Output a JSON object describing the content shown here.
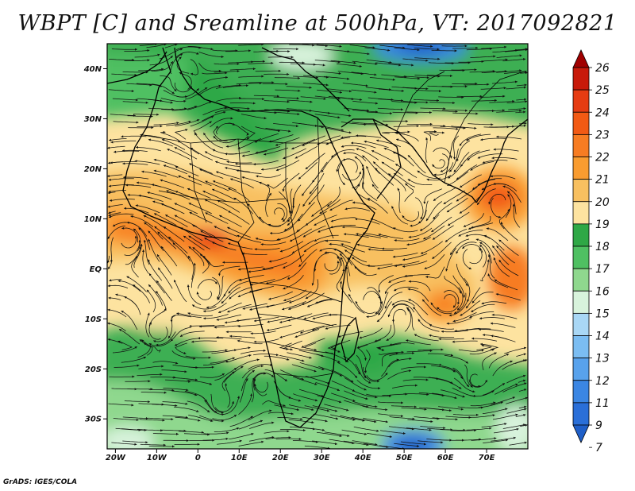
{
  "title": "WBPT [C] and Sreamline at 500hPa, VT: 2017092821",
  "credit": "GrADS: IGES/COLA",
  "map": {
    "lon_ticks": [
      "20W",
      "10W",
      "0",
      "10E",
      "20E",
      "30E",
      "40E",
      "50E",
      "60E",
      "70E"
    ],
    "lat_ticks": [
      "40N",
      "30N",
      "20N",
      "10N",
      "EQ",
      "10S",
      "20S",
      "30S"
    ],
    "lon_range": [
      -22,
      80
    ],
    "lat_range": [
      -36,
      45
    ]
  },
  "colorbar": {
    "levels": [
      "26",
      "25",
      "24",
      "23",
      "22",
      "21",
      "20",
      "19",
      "18",
      "17",
      "16",
      "15",
      "14",
      "13",
      "12",
      "11",
      "9",
      "7"
    ],
    "colors": [
      "#a00000",
      "#c81a0a",
      "#e63c12",
      "#f25a14",
      "#f77c22",
      "#f99c30",
      "#f8c060",
      "#fde3a0",
      "#2fa846",
      "#4fc062",
      "#8fd88e",
      "#d8f3dc",
      "#a9d7f5",
      "#7bbdf2",
      "#58a2ec",
      "#3b86e3",
      "#2a6fd8",
      "#1f5fc8"
    ]
  }
}
